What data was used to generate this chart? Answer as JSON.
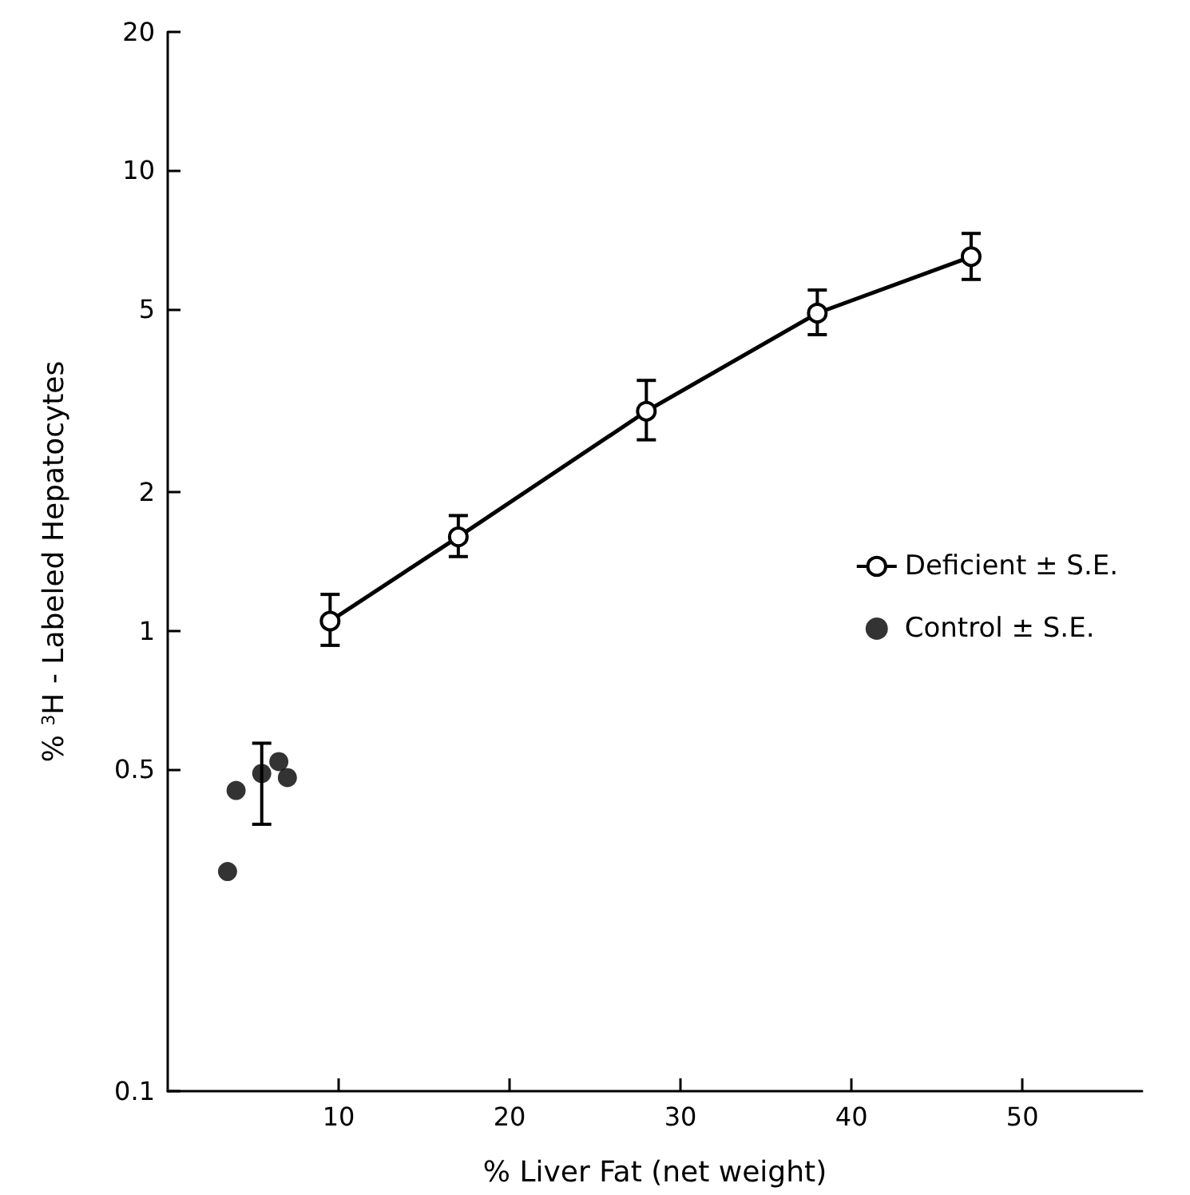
{
  "chart_data": {
    "type": "line",
    "xlabel": "% Liver Fat (net weight)",
    "ylabel": "% $^{3}$H - Labeled Hepatocytes",
    "log": "y",
    "grid": false,
    "legend": "right",
    "marker": "circle",
    "line_style": "solid",
    "xlim": [
      0,
      57
    ],
    "xticks": [
      10,
      20,
      30,
      40,
      50
    ],
    "ylim": [
      0.1,
      20
    ],
    "yticks": [
      0.1,
      0.5,
      1,
      2,
      5,
      10,
      20
    ],
    "series": [
      {
        "name": "Deficient ± S.E.",
        "color": "#000000",
        "x": [
          9.5,
          17,
          28,
          38,
          47
        ],
        "values": [
          1.05,
          1.6,
          3.0,
          4.9,
          6.5
        ],
        "errors": [
          [
            0.93,
            1.2
          ],
          [
            1.45,
            1.78
          ],
          [
            2.6,
            3.5
          ],
          [
            4.4,
            5.5
          ],
          [
            5.8,
            7.3
          ]
        ]
      },
      {
        "name": "Control ± S.E.",
        "type": "scatter",
        "color": "#000000",
        "x": [
          3.5,
          4,
          5.5,
          6.5,
          7
        ],
        "values": [
          0.3,
          0.45,
          0.49,
          0.52,
          0.48
        ],
        "errors": [
          null,
          null,
          [
            0.38,
            0.57
          ],
          null,
          null
        ]
      }
    ]
  }
}
